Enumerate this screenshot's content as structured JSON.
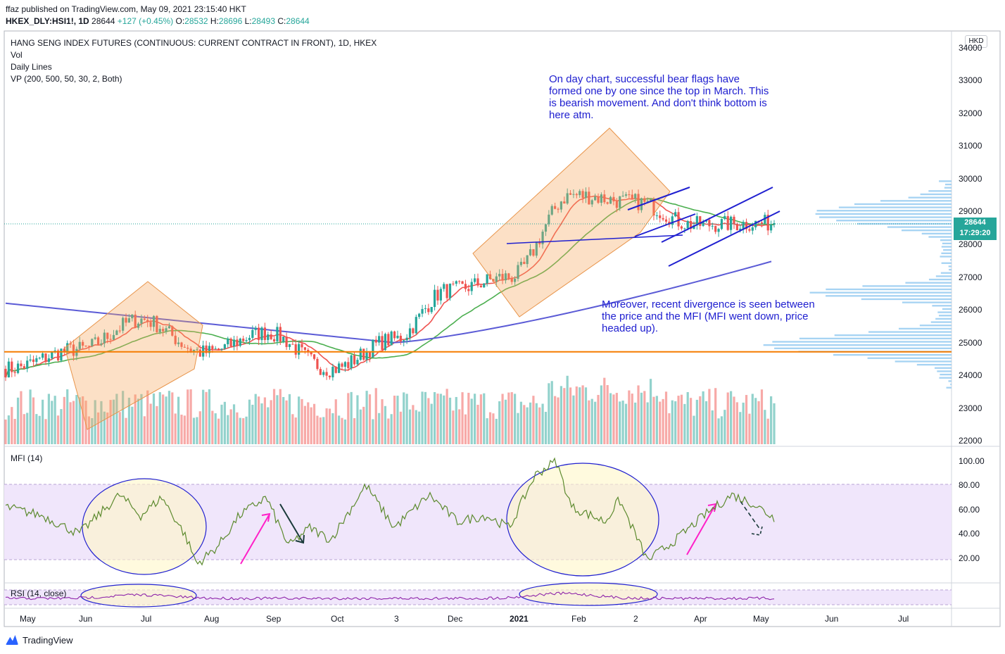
{
  "header": {
    "publisher_line": "ffaz published on TradingView.com, May 09, 2021 23:15:40 HKT",
    "symbol": "HKEX_DLY:HSI1!, 1D",
    "last": "28644",
    "change": "+127 (+0.45%)",
    "open_label": "O:",
    "open": "28532",
    "high_label": "H:",
    "high": "28696",
    "low_label": "L:",
    "low": "28493",
    "close_label": "C:",
    "close": "28644"
  },
  "legend": {
    "title": "HANG SENG INDEX FUTURES (CONTINUOUS: CURRENT CONTRACT IN FRONT), 1D, HKEX",
    "vol": "Vol",
    "daily_lines": "Daily Lines",
    "vp": "VP (200, 500, 50, 30, 2, Both)",
    "mfi": "MFI (14)",
    "rsi": "RSI (14, close)"
  },
  "annotations": {
    "note1_lines": [
      "On day chart, successful bear flags have",
      "formed one by one since the top in March. This",
      "is bearish movement. And don't think bottom is",
      "here atm."
    ],
    "note2_lines": [
      "Moreover, recent divergence is seen between",
      "the price and the MFI (MFI went down, price",
      "headed up)."
    ]
  },
  "price_tag": {
    "price": "28644",
    "countdown": "17:29:20"
  },
  "currency": "HKD",
  "branding": "TradingView",
  "colors": {
    "up": "#26a69a",
    "down": "#ef5350",
    "ma_fast": "#ef5350",
    "ma_mid": "#4caf50",
    "ma_slow": "#5b5bd6",
    "support": "#f57c00",
    "mfi_line": "#5c8a2e",
    "rsi_line": "#8e24aa",
    "annotation": "#2020d0",
    "volume_profile": "#90c8f0"
  },
  "chart_data": [
    {
      "type": "candlestick",
      "title": "HANG SENG INDEX FUTURES (CONTINUOUS: CURRENT CONTRACT IN FRONT), 1D, HKEX",
      "x_ticks": [
        "May",
        "Jun",
        "Jul",
        "Aug",
        "Sep",
        "Oct",
        "3",
        "Dec",
        "2021",
        "Feb",
        "2",
        "Apr",
        "May",
        "Jun",
        "Jul"
      ],
      "y_ticks": [
        22000,
        23000,
        24000,
        25000,
        26000,
        27000,
        28000,
        29000,
        30000,
        31000,
        32000,
        33000,
        34000
      ],
      "ylim": [
        21900,
        34100
      ],
      "last_price": 28644,
      "support_level": 24720,
      "price_path": [
        {
          "x": "May",
          "y": 24200
        },
        {
          "x": "Jun",
          "y": 24800
        },
        {
          "x": "Jul",
          "y": 25700
        },
        {
          "x": "Aug",
          "y": 24700
        },
        {
          "x": "Sep",
          "y": 25300
        },
        {
          "x": "Oct",
          "y": 24200
        },
        {
          "x": "3",
          "y": 25100
        },
        {
          "x": "Dec",
          "y": 26600
        },
        {
          "x": "2021",
          "y": 27000
        },
        {
          "x": "Feb",
          "y": 29500
        },
        {
          "x": "2",
          "y": 29300
        },
        {
          "x": "Apr",
          "y": 28600
        },
        {
          "x": "May",
          "y": 28644
        }
      ]
    },
    {
      "type": "line",
      "title": "MFI (14)",
      "y_ticks": [
        20,
        40,
        60,
        80,
        100
      ],
      "ylim": [
        10,
        105
      ],
      "band": [
        20,
        80
      ]
    },
    {
      "type": "line",
      "title": "RSI (14, close)",
      "band": [
        30,
        70
      ]
    }
  ]
}
